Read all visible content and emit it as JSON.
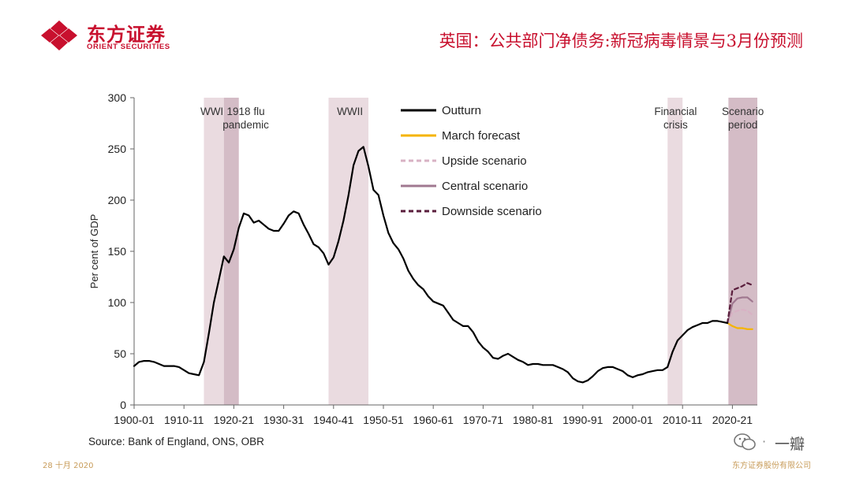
{
  "header": {
    "logo_cn": "东方证券",
    "logo_en": "ORIENT SECURITIES",
    "title": "英国：公共部门净债务:新冠病毒情景与3月份预测"
  },
  "chart_data": {
    "type": "line",
    "ylabel": "Per cent of GDP",
    "ylim": [
      0,
      300
    ],
    "yticks": [
      0,
      50,
      100,
      150,
      200,
      250,
      300
    ],
    "xlim": [
      1900,
      2025
    ],
    "xtick_labels": [
      "1900-01",
      "1910-11",
      "1920-21",
      "1930-31",
      "1940-41",
      "1950-51",
      "1960-61",
      "1970-71",
      "1980-81",
      "1990-91",
      "2000-01",
      "2010-11",
      "2020-21"
    ],
    "xtick_years": [
      1900,
      1910,
      1920,
      1930,
      1940,
      1950,
      1960,
      1970,
      1980,
      1990,
      2000,
      2010,
      2020
    ],
    "shaded_periods": [
      {
        "label": "WWI",
        "start": 1914,
        "end": 1918,
        "color": "#eadbe0"
      },
      {
        "label": "1918 flu pandemic",
        "start": 1918,
        "end": 1921,
        "color": "#d4bcc6"
      },
      {
        "label": "WWII",
        "start": 1939,
        "end": 1947,
        "color": "#eadbe0"
      },
      {
        "label": "Financial crisis",
        "start": 2007,
        "end": 2010,
        "color": "#eadbe0"
      },
      {
        "label": "Scenario period",
        "start": 2019.2,
        "end": 2025,
        "color": "#d4bcc6"
      }
    ],
    "period_labels": [
      {
        "lines": [
          "WWI"
        ],
        "x": 1915.6
      },
      {
        "lines": [
          "1918 flu",
          "pandemic"
        ],
        "x": 1922.4
      },
      {
        "lines": [
          "WWII"
        ],
        "x": 1943.3
      },
      {
        "lines": [
          "Financial",
          "crisis"
        ],
        "x": 2008.6
      },
      {
        "lines": [
          "Scenario",
          "period"
        ],
        "x": 2022.1
      }
    ],
    "legend": [
      {
        "label": "Outturn",
        "color": "#000000",
        "style": "solid"
      },
      {
        "label": "March forecast",
        "color": "#f5b400",
        "style": "solid"
      },
      {
        "label": "Upside scenario",
        "color": "#d8b2c4",
        "style": "dashed"
      },
      {
        "label": "Central scenario",
        "color": "#a07890",
        "style": "solid"
      },
      {
        "label": "Downside scenario",
        "color": "#5a1e3c",
        "style": "dashed"
      }
    ],
    "series": [
      {
        "name": "Outturn",
        "color": "#000000",
        "dash": "",
        "width": 2.2,
        "points": [
          [
            1900,
            38
          ],
          [
            1901,
            42
          ],
          [
            1902,
            43
          ],
          [
            1903,
            43
          ],
          [
            1904,
            42
          ],
          [
            1905,
            40
          ],
          [
            1906,
            38
          ],
          [
            1907,
            38
          ],
          [
            1908,
            38
          ],
          [
            1909,
            37
          ],
          [
            1910,
            34
          ],
          [
            1911,
            31
          ],
          [
            1912,
            30
          ],
          [
            1913,
            29
          ],
          [
            1914,
            42
          ],
          [
            1915,
            70
          ],
          [
            1916,
            100
          ],
          [
            1917,
            122
          ],
          [
            1918,
            145
          ],
          [
            1919,
            139
          ],
          [
            1920,
            152
          ],
          [
            1921,
            173
          ],
          [
            1922,
            187
          ],
          [
            1923,
            185
          ],
          [
            1924,
            178
          ],
          [
            1925,
            180
          ],
          [
            1926,
            176
          ],
          [
            1927,
            172
          ],
          [
            1928,
            170
          ],
          [
            1929,
            170
          ],
          [
            1930,
            177
          ],
          [
            1931,
            185
          ],
          [
            1932,
            189
          ],
          [
            1933,
            187
          ],
          [
            1934,
            176
          ],
          [
            1935,
            167
          ],
          [
            1936,
            157
          ],
          [
            1937,
            154
          ],
          [
            1938,
            148
          ],
          [
            1939,
            137
          ],
          [
            1940,
            144
          ],
          [
            1941,
            160
          ],
          [
            1942,
            180
          ],
          [
            1943,
            205
          ],
          [
            1944,
            234
          ],
          [
            1945,
            248
          ],
          [
            1946,
            252
          ],
          [
            1947,
            233
          ],
          [
            1948,
            210
          ],
          [
            1949,
            205
          ],
          [
            1950,
            185
          ],
          [
            1951,
            168
          ],
          [
            1952,
            158
          ],
          [
            1953,
            152
          ],
          [
            1954,
            143
          ],
          [
            1955,
            131
          ],
          [
            1956,
            123
          ],
          [
            1957,
            117
          ],
          [
            1958,
            113
          ],
          [
            1959,
            106
          ],
          [
            1960,
            101
          ],
          [
            1961,
            99
          ],
          [
            1962,
            97
          ],
          [
            1963,
            90
          ],
          [
            1964,
            83
          ],
          [
            1965,
            80
          ],
          [
            1966,
            77
          ],
          [
            1967,
            77
          ],
          [
            1968,
            71
          ],
          [
            1969,
            62
          ],
          [
            1970,
            56
          ],
          [
            1971,
            52
          ],
          [
            1972,
            46
          ],
          [
            1973,
            45
          ],
          [
            1974,
            48
          ],
          [
            1975,
            50
          ],
          [
            1976,
            47
          ],
          [
            1977,
            44
          ],
          [
            1978,
            42
          ],
          [
            1979,
            39
          ],
          [
            1980,
            40
          ],
          [
            1981,
            40
          ],
          [
            1982,
            39
          ],
          [
            1983,
            39
          ],
          [
            1984,
            39
          ],
          [
            1985,
            37
          ],
          [
            1986,
            35
          ],
          [
            1987,
            32
          ],
          [
            1988,
            26
          ],
          [
            1989,
            23
          ],
          [
            1990,
            22
          ],
          [
            1991,
            24
          ],
          [
            1992,
            28
          ],
          [
            1993,
            33
          ],
          [
            1994,
            36
          ],
          [
            1995,
            37
          ],
          [
            1996,
            37
          ],
          [
            1997,
            35
          ],
          [
            1998,
            33
          ],
          [
            1999,
            29
          ],
          [
            2000,
            27
          ],
          [
            2001,
            29
          ],
          [
            2002,
            30
          ],
          [
            2003,
            32
          ],
          [
            2004,
            33
          ],
          [
            2005,
            34
          ],
          [
            2006,
            34
          ],
          [
            2007,
            37
          ],
          [
            2008,
            52
          ],
          [
            2009,
            63
          ],
          [
            2010,
            68
          ],
          [
            2011,
            73
          ],
          [
            2012,
            76
          ],
          [
            2013,
            78
          ],
          [
            2014,
            80
          ],
          [
            2015,
            80
          ],
          [
            2016,
            82
          ],
          [
            2017,
            82
          ],
          [
            2018,
            81
          ],
          [
            2019,
            80
          ]
        ]
      },
      {
        "name": "March forecast",
        "color": "#f5b400",
        "dash": "",
        "width": 2.2,
        "points": [
          [
            2019,
            80
          ],
          [
            2020,
            77
          ],
          [
            2021,
            75
          ],
          [
            2022,
            75
          ],
          [
            2023,
            74
          ],
          [
            2024,
            74
          ]
        ]
      },
      {
        "name": "Upside scenario",
        "color": "#d8b2c4",
        "dash": "5,4",
        "width": 2.2,
        "points": [
          [
            2019,
            80
          ],
          [
            2020,
            90
          ],
          [
            2021,
            92
          ],
          [
            2022,
            93
          ],
          [
            2023,
            92
          ],
          [
            2024,
            88
          ]
        ]
      },
      {
        "name": "Central scenario",
        "color": "#a07890",
        "dash": "",
        "width": 2.2,
        "points": [
          [
            2019,
            80
          ],
          [
            2020,
            99
          ],
          [
            2021,
            104
          ],
          [
            2022,
            105
          ],
          [
            2023,
            105
          ],
          [
            2024,
            101
          ]
        ]
      },
      {
        "name": "Downside scenario",
        "color": "#5a1e3c",
        "dash": "5,4",
        "width": 2.2,
        "points": [
          [
            2019,
            80
          ],
          [
            2020,
            112
          ],
          [
            2021,
            114
          ],
          [
            2022,
            116
          ],
          [
            2023,
            119
          ],
          [
            2024,
            117
          ]
        ]
      }
    ]
  },
  "source": "Source: Bank of England, ONS, OBR",
  "footer": {
    "date": "28 十月 2020",
    "company": "东方证券股份有限公司"
  },
  "watermark": {
    "text": "一瓣"
  },
  "colors": {
    "brand_red": "#c8102e",
    "footer_gold": "#c89c5a"
  }
}
